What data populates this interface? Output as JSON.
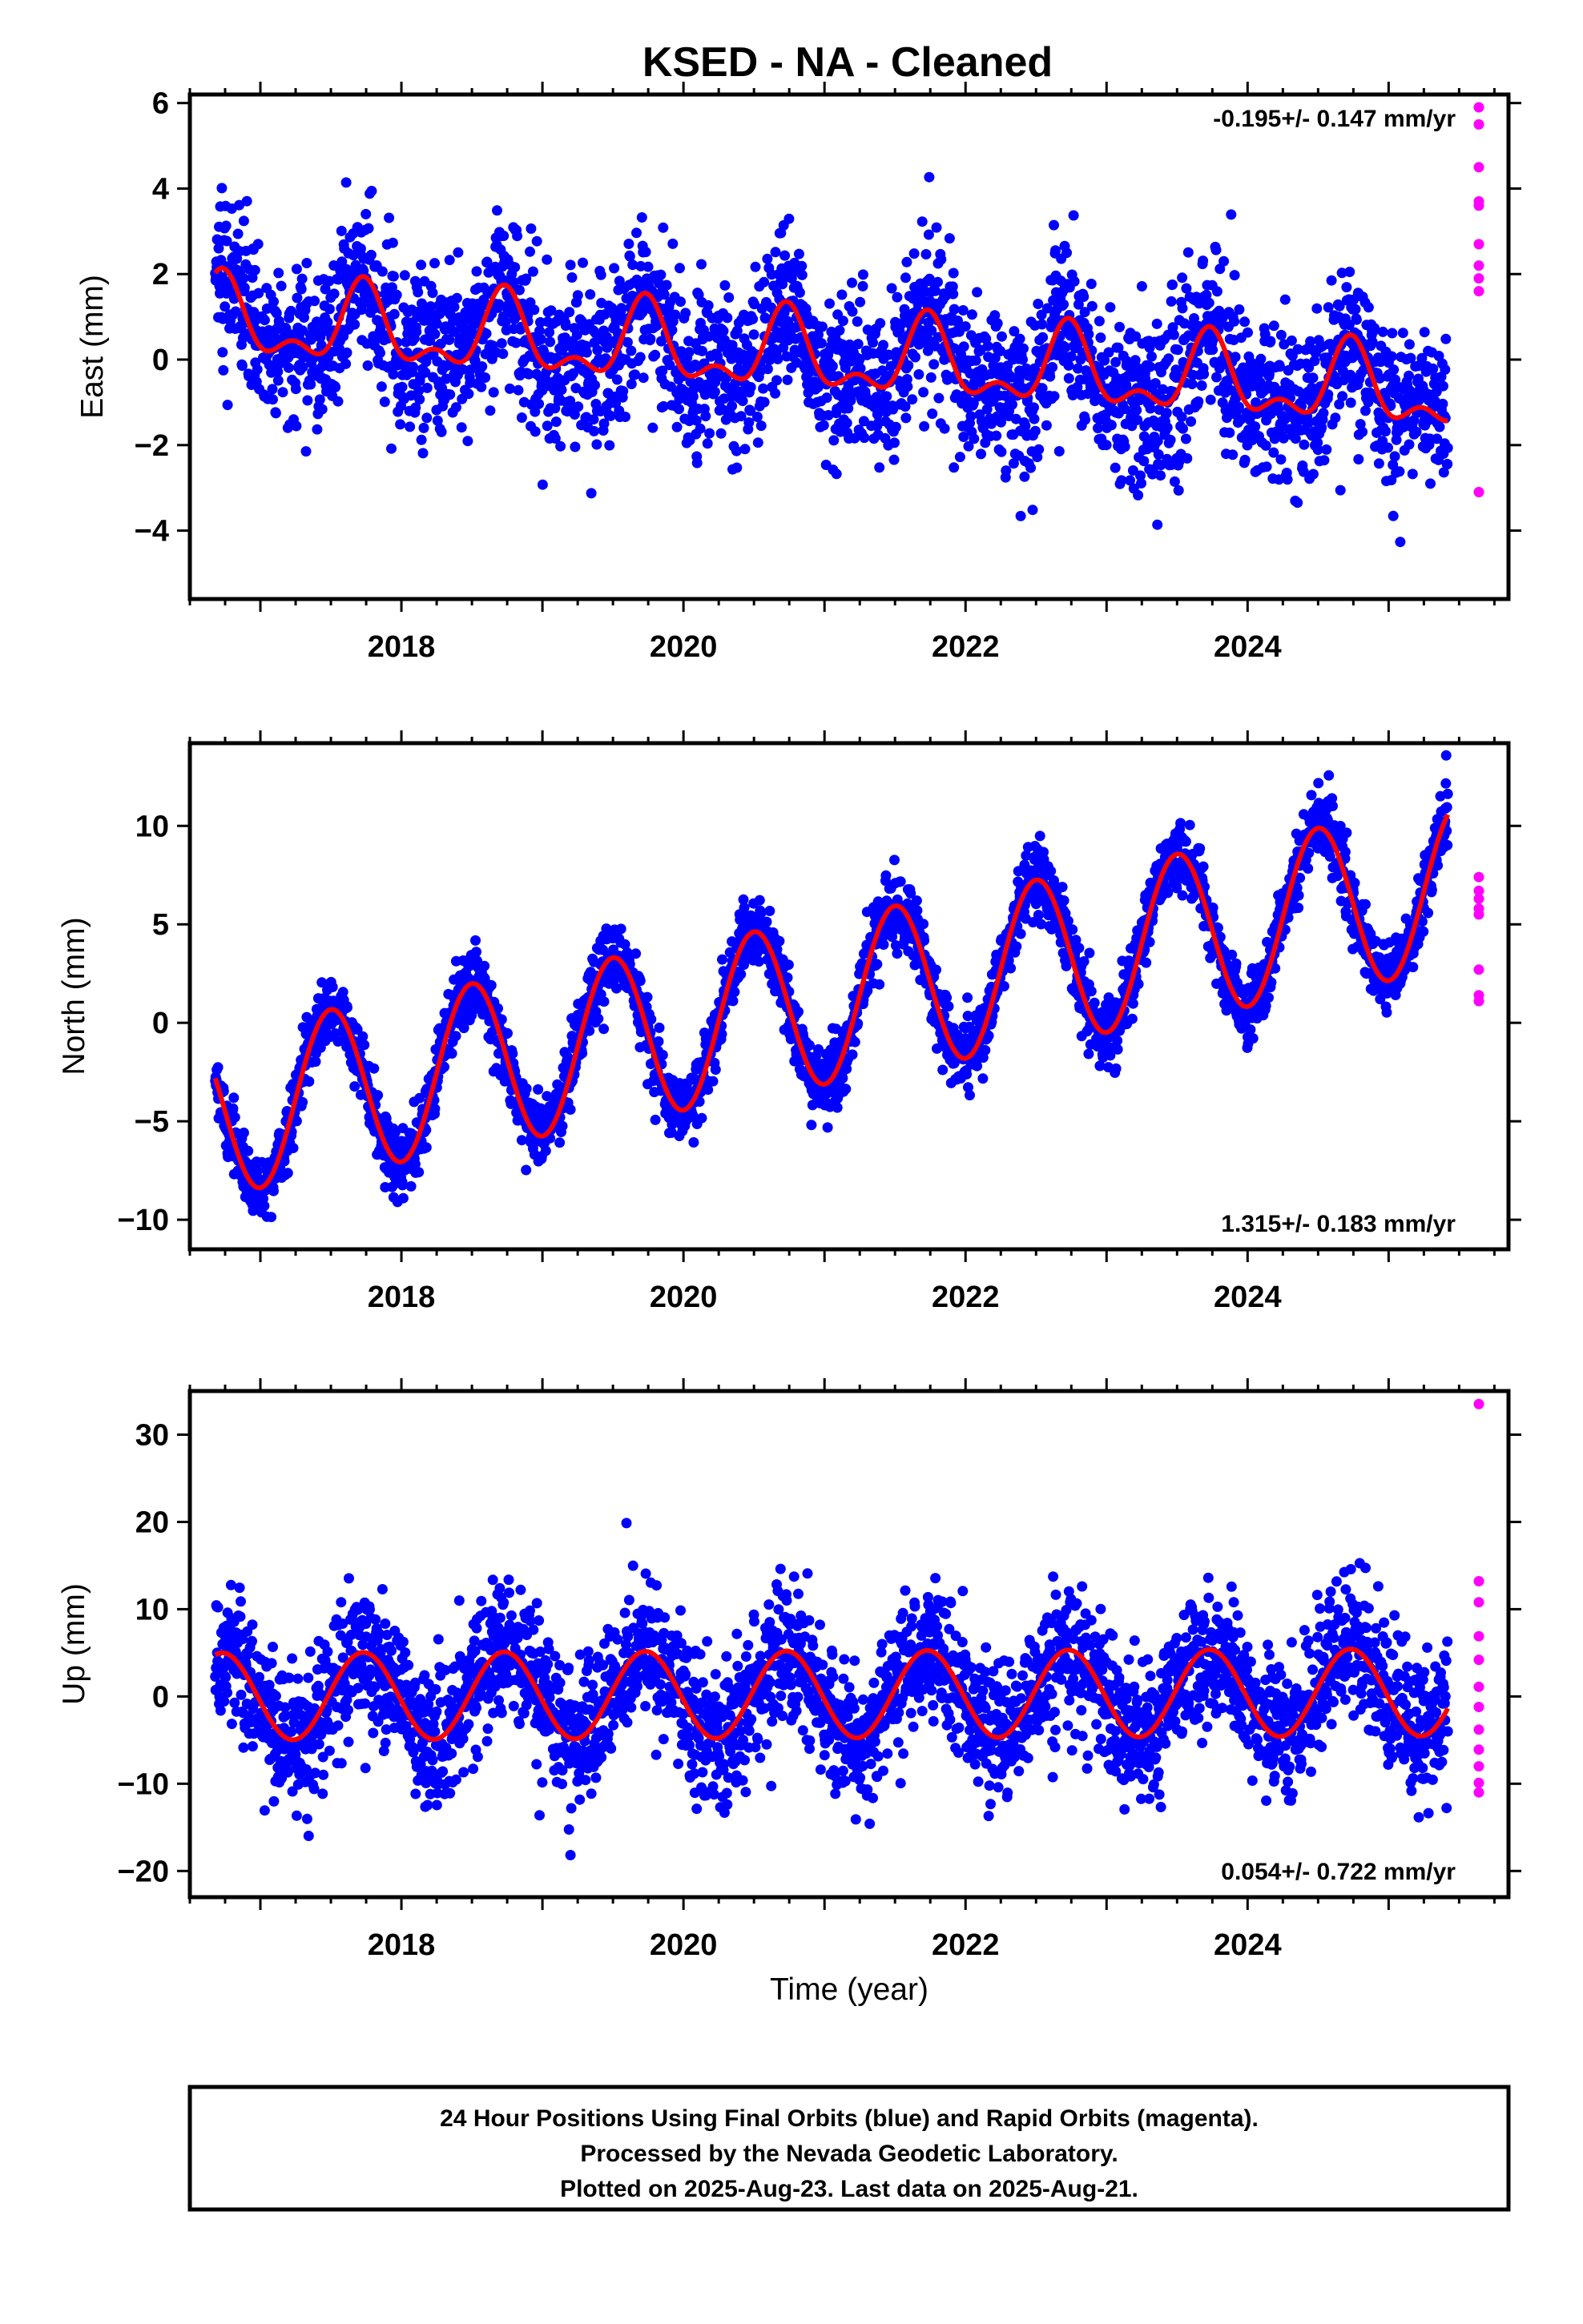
{
  "title": "KSED  - NA - Cleaned",
  "footer": {
    "lines": [
      "24 Hour Positions Using Final Orbits (blue) and Rapid Orbits (magenta).",
      "Processed by the Nevada Geodetic Laboratory.",
      "Plotted on 2025-Aug-23. Last data on 2025-Aug-21."
    ]
  },
  "colors": {
    "final": "#0000ff",
    "rapid": "#ff00ff",
    "fit": "#ff0000"
  },
  "chart_data": [
    {
      "type": "scatter",
      "name": "east",
      "ylabel": "East (mm)",
      "xlabel": "",
      "xlim": [
        2016.5,
        2025.85
      ],
      "ylim": [
        -5.6,
        6.2
      ],
      "xticks": [
        2018,
        2020,
        2022,
        2024
      ],
      "xtick_labels": [
        "2018",
        "2020",
        "2022",
        "2024"
      ],
      "yticks": [
        -4,
        -2,
        0,
        2,
        4,
        6
      ],
      "ytick_labels": [
        "−4",
        "−2",
        "0",
        "2",
        "4",
        "6"
      ],
      "rate_text": "-0.195+/- 0.147 mm/yr",
      "rate_position": "top-right",
      "data_start": 2016.68,
      "data_end": 2025.42,
      "rapid_end": 2025.64,
      "trend_slope": -0.195,
      "fit_offset": 0.9,
      "annual_amp": 0.8,
      "annual_peak": 2016.73,
      "semiannual_amp": 0.45,
      "semiannual_peak": 2016.73,
      "scatter_sd": 0.95,
      "rapid_y": [
        5.9,
        5.5,
        4.5,
        3.7,
        3.6,
        2.7,
        2.2,
        1.9,
        1.6,
        -3.1
      ]
    },
    {
      "type": "scatter",
      "name": "north",
      "ylabel": "North (mm)",
      "xlabel": "",
      "xlim": [
        2016.5,
        2025.85
      ],
      "ylim": [
        -11.5,
        14.2
      ],
      "xticks": [
        2018,
        2020,
        2022,
        2024
      ],
      "xtick_labels": [
        "2018",
        "2020",
        "2022",
        "2024"
      ],
      "yticks": [
        -10,
        -5,
        0,
        5,
        10
      ],
      "ytick_labels": [
        "−10",
        "−5",
        "0",
        "5",
        "10"
      ],
      "rate_text": "1.315+/- 0.183 mm/yr",
      "rate_position": "bottom-right",
      "data_start": 2016.68,
      "data_end": 2025.42,
      "rapid_end": 2025.64,
      "trend_slope": 1.315,
      "fit_offset": -4.6,
      "annual_amp": 4.2,
      "annual_peak": 2016.5,
      "semiannual_amp": 0.0,
      "semiannual_peak": 2016.5,
      "scatter_sd": 0.9,
      "rapid_y": [
        7.4,
        6.7,
        6.3,
        5.8,
        5.5,
        2.7,
        1.4,
        1.1
      ]
    },
    {
      "type": "scatter",
      "name": "up",
      "ylabel": "Up (mm)",
      "xlabel": "Time (year)",
      "xlim": [
        2016.5,
        2025.85
      ],
      "ylim": [
        -23,
        35
      ],
      "xticks": [
        2018,
        2020,
        2022,
        2024
      ],
      "xtick_labels": [
        "2018",
        "2020",
        "2022",
        "2024"
      ],
      "yticks": [
        -20,
        -10,
        0,
        10,
        20,
        30
      ],
      "ytick_labels": [
        "−20",
        "−10",
        "0",
        "10",
        "20",
        "30"
      ],
      "rate_text": "0.054+/- 0.722 mm/yr",
      "rate_position": "bottom-right",
      "data_start": 2016.68,
      "data_end": 2025.42,
      "rapid_end": 2025.64,
      "trend_slope": 0.054,
      "fit_offset": 0.0,
      "annual_amp": 5.0,
      "annual_peak": 2016.73,
      "semiannual_amp": 0.0,
      "semiannual_peak": 2016.73,
      "scatter_sd": 4.0,
      "rapid_y": [
        33.5,
        13.2,
        10.8,
        6.9,
        4.2,
        1.1,
        -1.2,
        -3.8,
        -6.1,
        -8.0,
        -9.9,
        -11.0
      ]
    }
  ]
}
